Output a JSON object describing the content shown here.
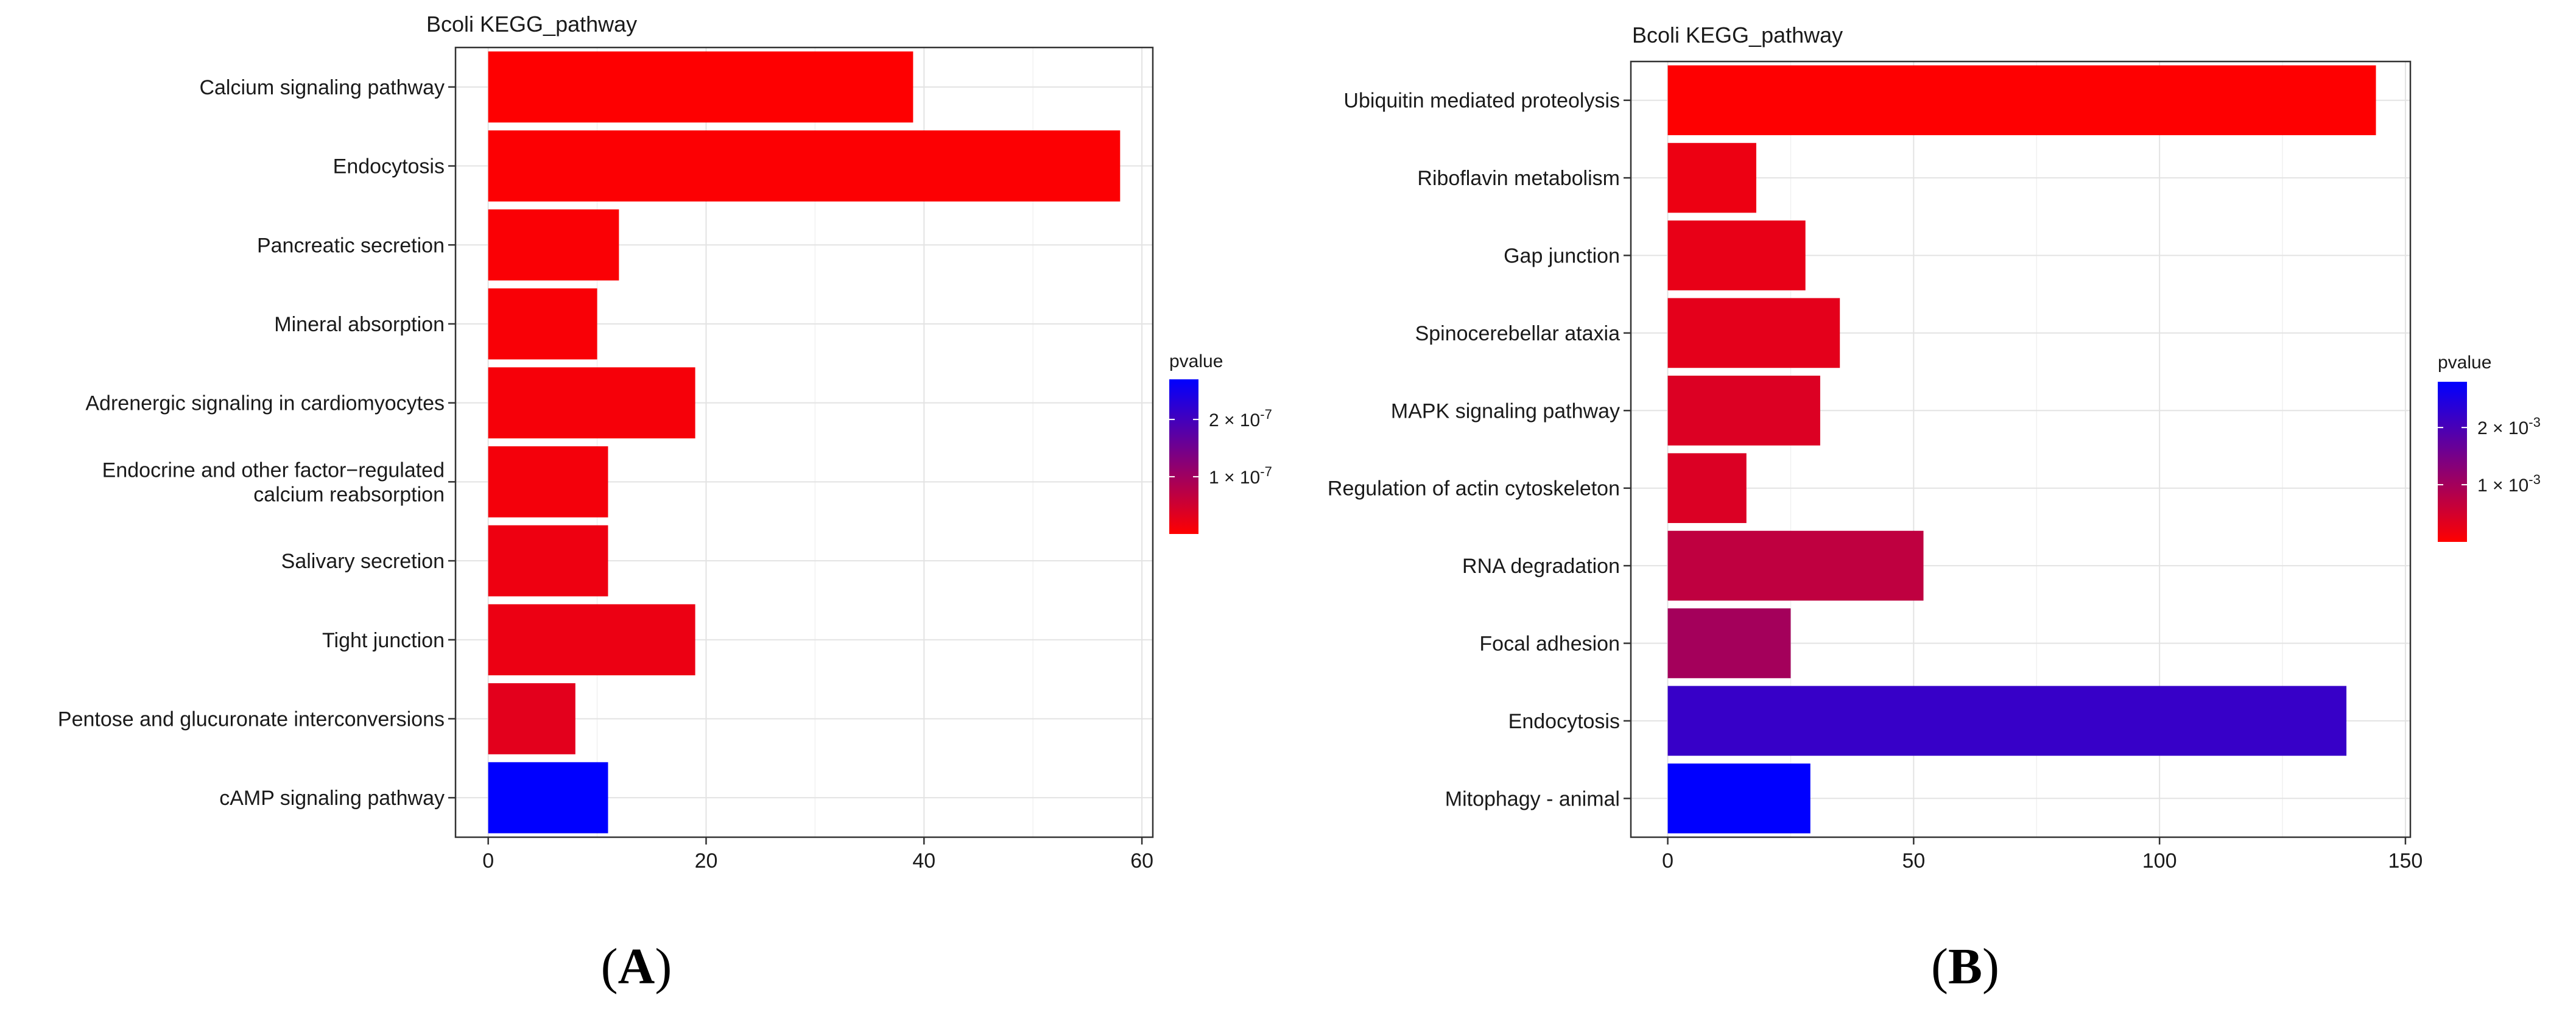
{
  "chart_data": [
    {
      "type": "bar",
      "orientation": "horizontal",
      "panel_label": "A",
      "title": "Bcoli KEGG_pathway",
      "xlabel": "",
      "ylabel": "",
      "xlim": [
        -3,
        61
      ],
      "x_ticks": [
        0,
        20,
        40,
        60
      ],
      "grid": true,
      "legend": {
        "title": "pvalue",
        "placement": "right",
        "scale_min": 0,
        "scale_max": 2.7e-07,
        "low_color": "#ff0000",
        "high_color": "#0000ff",
        "labels": [
          {
            "value": 1e-07,
            "base": "1 × 10",
            "exp": "-7"
          },
          {
            "value": 2e-07,
            "base": "2 × 10",
            "exp": "-7"
          }
        ]
      },
      "categories": [
        [
          "Calcium signaling pathway"
        ],
        [
          "Endocytosis"
        ],
        [
          "Pancreatic secretion"
        ],
        [
          "Mineral absorption"
        ],
        [
          "Adrenergic signaling in cardiomyocytes"
        ],
        [
          "Endocrine and other factor−regulated",
          "calcium reabsorption"
        ],
        [
          "Salivary secretion"
        ],
        [
          "Tight junction"
        ],
        [
          "Pentose and glucuronate interconversions"
        ],
        [
          "cAMP signaling pathway"
        ]
      ],
      "values": [
        39,
        58,
        12,
        10,
        19,
        11,
        11,
        19,
        8,
        11
      ],
      "pvalues": [
        1e-09,
        3e-09,
        5e-09,
        6e-09,
        1e-08,
        1.2e-08,
        1.8e-08,
        2e-08,
        3e-08,
        2.7e-07
      ]
    },
    {
      "type": "bar",
      "orientation": "horizontal",
      "panel_label": "B",
      "title": "Bcoli KEGG_pathway",
      "xlabel": "",
      "ylabel": "",
      "xlim": [
        -7.5,
        151
      ],
      "x_ticks": [
        0,
        50,
        100,
        150
      ],
      "grid": true,
      "legend": {
        "title": "pvalue",
        "placement": "right",
        "scale_min": 0,
        "scale_max": 0.0028,
        "low_color": "#ff0000",
        "high_color": "#0000ff",
        "labels": [
          {
            "value": 0.001,
            "base": "1 × 10",
            "exp": "-3"
          },
          {
            "value": 0.002,
            "base": "2 × 10",
            "exp": "-3"
          }
        ]
      },
      "categories": [
        [
          "Ubiquitin mediated proteolysis"
        ],
        [
          "Riboflavin metabolism"
        ],
        [
          "Gap junction"
        ],
        [
          "Spinocerebellar ataxia"
        ],
        [
          "MAPK signaling pathway"
        ],
        [
          "Regulation of actin cytoskeleton"
        ],
        [
          "RNA degradation"
        ],
        [
          "Focal adhesion"
        ],
        [
          "Endocytosis"
        ],
        [
          "Mitophagy - animal"
        ]
      ],
      "values": [
        144,
        18,
        28,
        35,
        31,
        16,
        52,
        25,
        138,
        29
      ],
      "pvalues": [
        1e-05,
        0.0002,
        0.00025,
        0.0003,
        0.00038,
        0.0004,
        0.0007,
        0.001,
        0.0022,
        0.0028
      ]
    }
  ]
}
